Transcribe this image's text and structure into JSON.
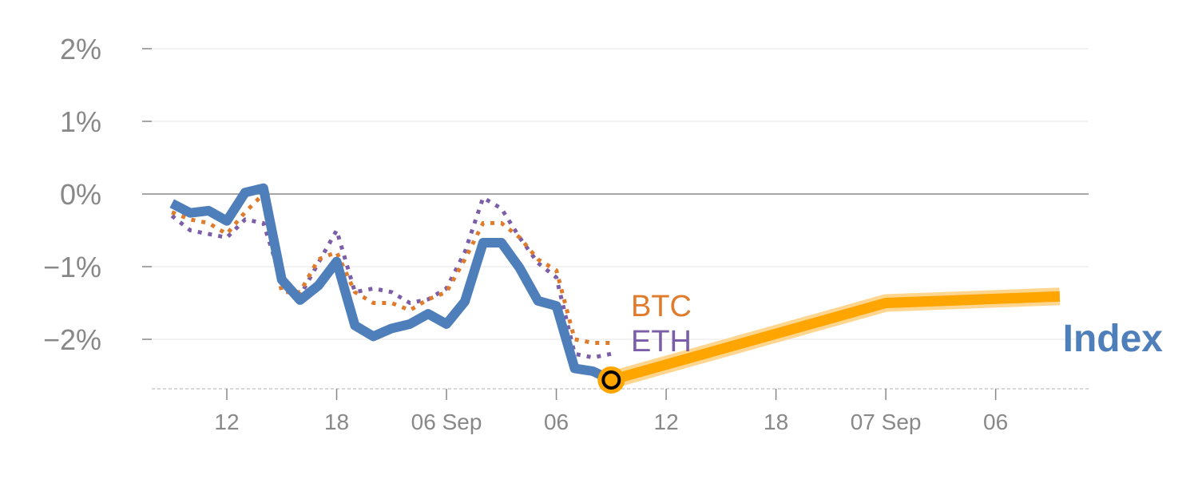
{
  "chart_data": {
    "type": "line",
    "title": "",
    "xlabel": "",
    "ylabel": "",
    "x_unit": "hours",
    "xlim": [
      8.8,
      58
    ],
    "ylim": [
      -2.67,
      2.2
    ],
    "y_ticks": [
      2,
      1,
      0,
      -1,
      -2
    ],
    "y_tick_labels": [
      "2%",
      "1%",
      "0%",
      "−1%",
      "−2%"
    ],
    "x_ticks": [
      12,
      18,
      24,
      30,
      36,
      42,
      48,
      54
    ],
    "x_tick_labels": [
      "12",
      "18",
      "06 Sep",
      "06",
      "12",
      "18",
      "07 Sep",
      "06"
    ],
    "grid": true,
    "x": [
      9,
      10,
      11,
      12,
      13,
      14,
      15,
      16,
      17,
      18,
      19,
      20,
      21,
      22,
      23,
      24,
      25,
      26,
      27,
      28,
      29,
      30,
      31,
      32,
      33
    ],
    "series": [
      {
        "name": "Index",
        "color": "#4e7fbb",
        "style": "solid",
        "values": [
          -0.13,
          -0.26,
          -0.23,
          -0.37,
          0.02,
          0.08,
          -1.18,
          -1.46,
          -1.26,
          -0.93,
          -1.81,
          -1.96,
          -1.85,
          -1.79,
          -1.65,
          -1.79,
          -1.48,
          -0.67,
          -0.67,
          -1.02,
          -1.47,
          -1.54,
          -2.4,
          -2.44,
          -2.56
        ]
      },
      {
        "name": "BTC",
        "color": "#e07b2c",
        "style": "dotted",
        "values": [
          -0.25,
          -0.35,
          -0.4,
          -0.55,
          -0.25,
          0.0,
          -1.35,
          -1.35,
          -0.9,
          -0.8,
          -1.35,
          -1.5,
          -1.5,
          -1.6,
          -1.45,
          -1.35,
          -0.9,
          -0.4,
          -0.4,
          -0.6,
          -0.9,
          -1.05,
          -2.0,
          -2.05,
          -2.05
        ]
      },
      {
        "name": "ETH",
        "color": "#7b5ea7",
        "style": "dotted",
        "values": [
          -0.3,
          -0.5,
          -0.55,
          -0.6,
          -0.35,
          -0.4,
          -1.2,
          -1.4,
          -0.95,
          -0.5,
          -1.35,
          -1.3,
          -1.35,
          -1.5,
          -1.45,
          -1.3,
          -0.8,
          -0.05,
          -0.2,
          -0.6,
          -0.95,
          -1.15,
          -2.2,
          -2.25,
          -2.2
        ]
      }
    ],
    "forecast": {
      "name": "Index forecast",
      "color": "#ffa500",
      "x": [
        33,
        48,
        57.5
      ],
      "values": [
        -2.56,
        -1.5,
        -1.41
      ]
    },
    "labels": {
      "btc": "BTC",
      "eth": "ETH",
      "index": "Index"
    }
  }
}
